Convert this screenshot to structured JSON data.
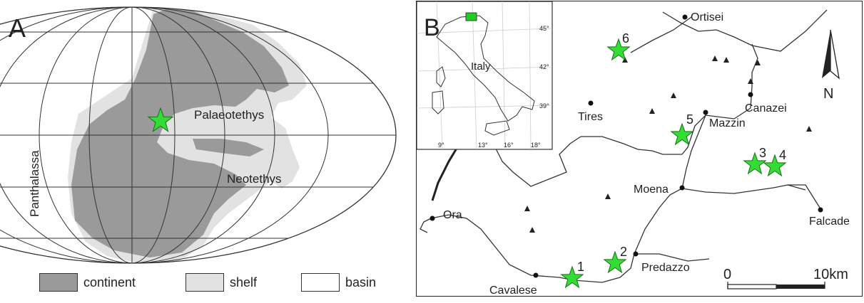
{
  "panel_a": {
    "label": "A",
    "ocean_labels": {
      "panthalassa": "Panthalassa",
      "palaeotethys": "Palaeotethys",
      "neotethys": "Neotethys"
    },
    "legend": [
      {
        "label": "continent",
        "color": "#9a9a9a"
      },
      {
        "label": "shelf",
        "color": "#e2e2e2"
      },
      {
        "label": "basin",
        "color": "#ffffff"
      }
    ],
    "marker_color": "#33dd33"
  },
  "panel_b": {
    "label": "B",
    "north_label": "N",
    "towns": {
      "ortisei": "Ortisei",
      "tires": "Tires",
      "mazzin": "Mazzin",
      "canazei": "Canazei",
      "moena": "Moena",
      "ora": "Ora",
      "falcade": "Falcade",
      "predazzo": "Predazzo",
      "cavalese": "Cavalese"
    },
    "sites": [
      "1",
      "2",
      "3",
      "4",
      "5",
      "6"
    ],
    "scale": {
      "start": "0",
      "end": "10km"
    },
    "inset": {
      "country": "Italy",
      "lat_ticks": [
        "45°",
        "42°",
        "39°"
      ],
      "lon_ticks": [
        "9°",
        "13°",
        "16°",
        "18°"
      ],
      "study_area_color": "#22cc22"
    }
  }
}
